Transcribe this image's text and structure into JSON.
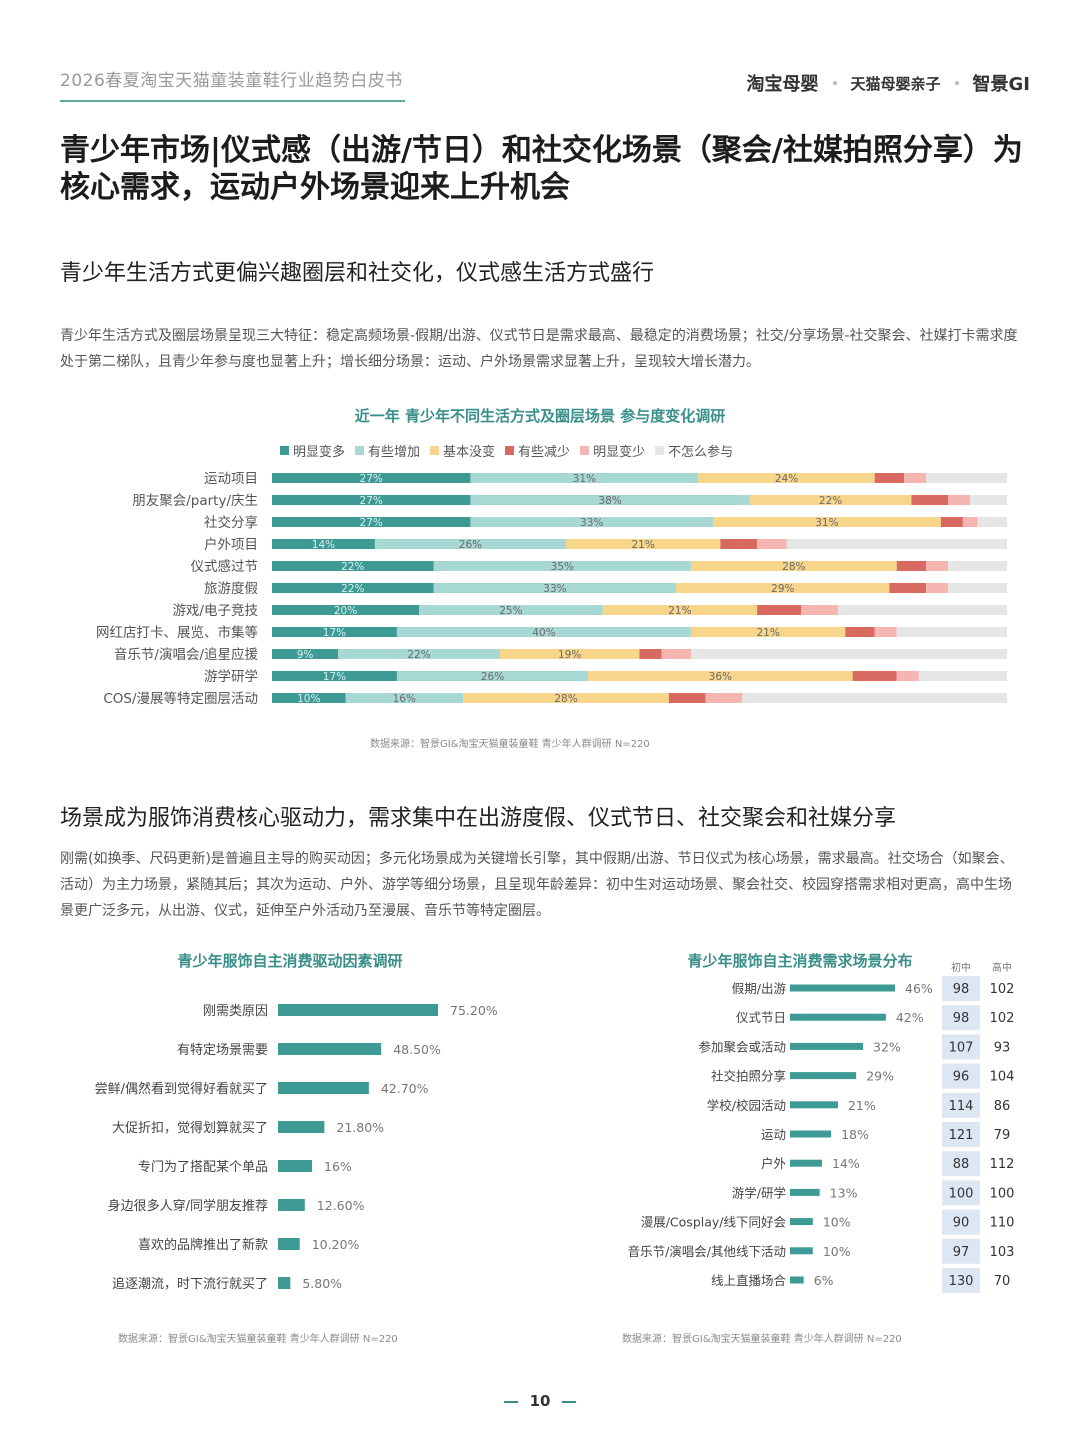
{
  "header": {
    "doc_title": "2026春夏淘宝天猫童装童鞋行业趋势白皮书",
    "logos": [
      "淘宝母婴",
      "天猫母婴亲子",
      "智景GI"
    ]
  },
  "main_title": "青少年市场|仪式感（出游/节日）和社交化场景（聚会/社媒拍照分享）为核心需求，运动户外场景迎来上升机会",
  "section1": {
    "title": "青少年生活方式更偏兴趣圈层和社交化，仪式感生活方式盛行",
    "paragraph": "青少年生活方式及圈层场景呈现三大特征：稳定高频场景-假期/出游、仪式节日是需求最高、最稳定的消费场景；社交/分享场景-社交聚会、社媒打卡需求度处于第二梯队，且青少年参与度也显著上升；增长细分场景：运动、户外场景需求显著上升，呈现较大增长潜力。",
    "source": "数据来源：智景GI&淘宝天猫童装童鞋 青少年人群调研 N=220"
  },
  "section2": {
    "title": "场景成为服饰消费核心驱动力，需求集中在出游度假、仪式节日、社交聚会和社媒分享",
    "paragraph": "刚需(如换季、尺码更新)是普遍且主导的购买动因；多元化场景成为关键增长引擎，其中假期/出游、节日仪式为核心场景，需求最高。社交场合（如聚会、活动）为主力场景，紧随其后；其次为运动、户外、游学等细分场景，且呈现年龄差异：初中生对运动场景、聚会社交、校园穿搭需求相对更高，高中生场景更广泛多元，从出游、仪式，延伸至户外活动乃至漫展、音乐节等特定圈层。",
    "source_left": "数据来源：智景GI&淘宝天猫童装童鞋 青少年人群调研 N=220",
    "source_right": "数据来源：智景GI&淘宝天猫童装童鞋 青少年人群调研 N=220"
  },
  "page_number": "10",
  "chart_data": [
    {
      "type": "bar",
      "stacked": true,
      "orientation": "horizontal",
      "title": "近一年 青少年不同生活方式及圈层场景 参与度变化调研",
      "legend_position": "top",
      "categories": [
        "运动项目",
        "朋友聚会/party/庆生",
        "社交分享",
        "户外项目",
        "仪式感过节",
        "旅游度假",
        "游戏/电子竞技",
        "网红店打卡、展览、市集等",
        "音乐节/演唱会/追星应援",
        "游学研学",
        "COS/漫展等特定圈层活动"
      ],
      "series": [
        {
          "name": "明显变多",
          "color": "#3e9a94",
          "values": [
            27,
            27,
            27,
            14,
            22,
            22,
            20,
            17,
            9,
            17,
            10
          ],
          "labels": [
            "27%",
            "27%",
            "27%",
            "14%",
            "22%",
            "22%",
            "20%",
            "17%",
            "9%",
            "17%",
            "10%"
          ]
        },
        {
          "name": "有些增加",
          "color": "#a8d8d4",
          "values": [
            31,
            38,
            33,
            26,
            35,
            33,
            25,
            40,
            22,
            26,
            16
          ],
          "labels": [
            "31%",
            "38%",
            "33%",
            "26%",
            "35%",
            "33%",
            "25%",
            "40%",
            "22%",
            "26%",
            "16%"
          ]
        },
        {
          "name": "基本没变",
          "color": "#f7d58b",
          "values": [
            24,
            22,
            31,
            21,
            28,
            29,
            21,
            21,
            19,
            36,
            28
          ],
          "labels": [
            "24%",
            "22%",
            "31%",
            "21%",
            "28%",
            "29%",
            "21%",
            "21%",
            "19%",
            "36%",
            "28%"
          ]
        },
        {
          "name": "有些减少",
          "color": "#d96a62",
          "values": [
            4,
            5,
            3,
            5,
            4,
            5,
            6,
            4,
            3,
            6,
            5
          ],
          "labels": [
            "",
            "",
            "",
            "",
            "",
            "",
            "",
            "",
            "",
            "",
            ""
          ]
        },
        {
          "name": "明显变少",
          "color": "#f5b5b0",
          "values": [
            3,
            3,
            2,
            4,
            3,
            3,
            5,
            3,
            4,
            3,
            5
          ],
          "labels": [
            "",
            "",
            "",
            "",
            "",
            "",
            "",
            "",
            "",
            "",
            ""
          ]
        },
        {
          "name": "不怎么参与",
          "color": "#e6e6e6",
          "values": [
            11,
            5,
            4,
            30,
            8,
            8,
            23,
            15,
            43,
            12,
            36
          ],
          "labels": [
            "",
            "",
            "",
            "",
            "",
            "",
            "",
            "",
            "",
            "",
            ""
          ]
        }
      ]
    },
    {
      "type": "bar",
      "orientation": "horizontal",
      "title": "青少年服饰自主消费驱动因素调研",
      "categories": [
        "刚需类原因",
        "有特定场景需要",
        "尝鲜/偶然看到觉得好看就买了",
        "大促折扣，觉得划算就买了",
        "专门为了搭配某个单品",
        "身边很多人穿/同学朋友推荐",
        "喜欢的品牌推出了新款",
        "追逐潮流，时下流行就买了"
      ],
      "values": [
        75.2,
        48.5,
        42.7,
        21.8,
        16,
        12.6,
        10.2,
        5.8
      ],
      "labels": [
        "75.20%",
        "48.50%",
        "42.70%",
        "21.80%",
        "16%",
        "12.60%",
        "10.20%",
        "5.80%"
      ],
      "color": "#3e9a94"
    },
    {
      "type": "bar",
      "orientation": "horizontal",
      "title": "青少年服饰自主消费需求场景分布",
      "categories": [
        "假期/出游",
        "仪式节日",
        "参加聚会或活动",
        "社交拍照分享",
        "学校/校园活动",
        "运动",
        "户外",
        "游学/研学",
        "漫展/Cosplay/线下同好会",
        "音乐节/演唱会/其他线下活动",
        "线上直播场合"
      ],
      "values": [
        46,
        42,
        32,
        29,
        21,
        18,
        14,
        13,
        10,
        10,
        6
      ],
      "labels": [
        "46%",
        "42%",
        "32%",
        "29%",
        "21%",
        "18%",
        "14%",
        "13%",
        "10%",
        "10%",
        "6%"
      ],
      "color": "#3e9a94",
      "index_columns": [
        "初中",
        "高中"
      ],
      "index_values": [
        [
          98,
          102
        ],
        [
          98,
          102
        ],
        [
          107,
          93
        ],
        [
          96,
          104
        ],
        [
          114,
          86
        ],
        [
          121,
          79
        ],
        [
          88,
          112
        ],
        [
          100,
          100
        ],
        [
          90,
          110
        ],
        [
          97,
          103
        ],
        [
          130,
          70
        ]
      ]
    }
  ]
}
